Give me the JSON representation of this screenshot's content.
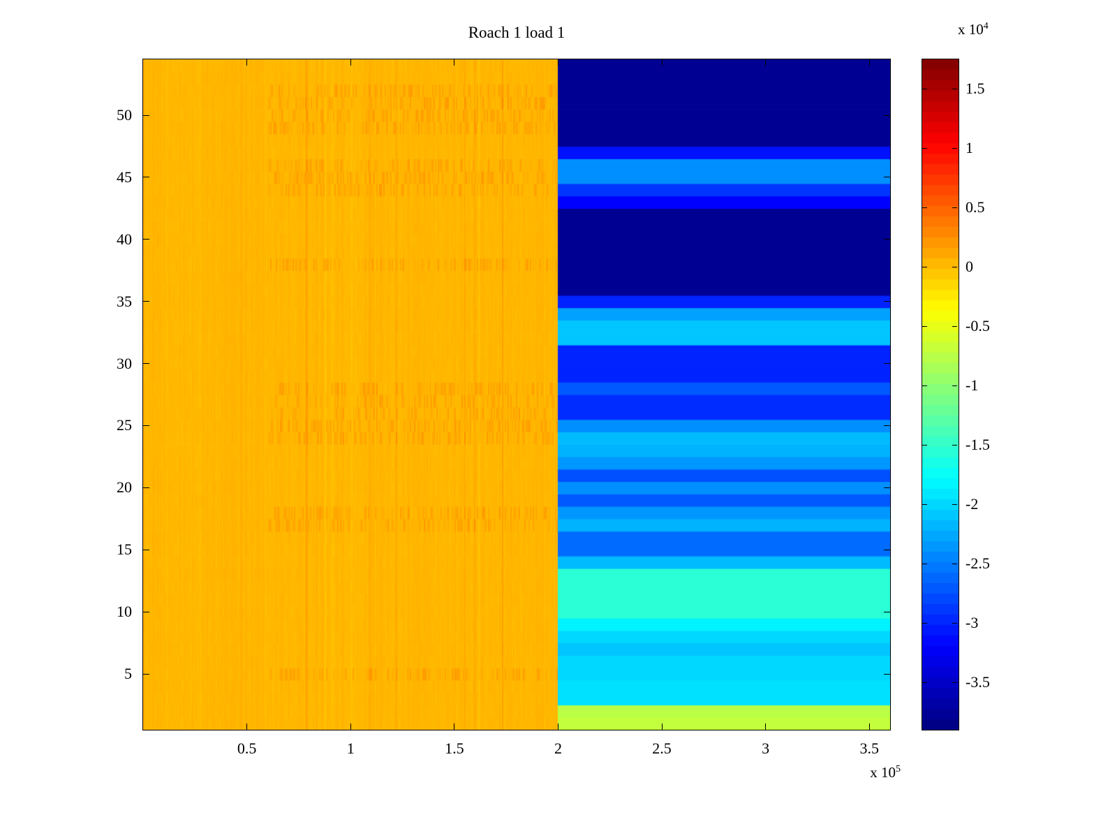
{
  "chart_data": {
    "type": "heatmap",
    "title": "Roach 1 load 1",
    "xlim": [
      0,
      360000
    ],
    "x_ticks": [
      50000,
      100000,
      150000,
      200000,
      250000,
      300000,
      350000
    ],
    "x_tick_labels": [
      "0.5",
      "1",
      "1.5",
      "2",
      "2.5",
      "3",
      "3.5"
    ],
    "x_scale": {
      "prefix": "x 10",
      "exponent": "5"
    },
    "ylim": [
      0.5,
      54.5
    ],
    "y_ticks": [
      5,
      10,
      15,
      20,
      25,
      30,
      35,
      40,
      45,
      50
    ],
    "y_tick_labels": [
      "5",
      "10",
      "15",
      "20",
      "25",
      "30",
      "35",
      "40",
      "45",
      "50"
    ],
    "colormap": "jet",
    "grid": false,
    "colorbar": {
      "position": "right",
      "scale": {
        "prefix": "x 10",
        "exponent": "4"
      },
      "clim": [
        -39000,
        17500
      ],
      "segments": 64,
      "tick_values": [
        15000,
        10000,
        5000,
        0,
        -5000,
        -10000,
        -15000,
        -20000,
        -25000,
        -30000,
        -35000
      ],
      "tick_labels": [
        "1.5",
        "1",
        "0.5",
        "0",
        "-0.5",
        "-1",
        "-1.5",
        "-2",
        "-2.5",
        "-3",
        "-3.5"
      ]
    },
    "regions": {
      "split_x": 200000,
      "left_half": {
        "base_value": 300,
        "column_noise_amp": 450,
        "cell_noise_amp": 320,
        "speckle_amp": 1500,
        "speckle_rows": [
          5,
          17,
          18,
          24,
          25,
          26,
          27,
          28,
          38,
          44,
          45,
          46,
          49,
          50,
          51,
          52
        ],
        "speckle_x_start": 60000
      },
      "right_row_values": [
        -7000,
        -7500,
        -19500,
        -19500,
        -20000,
        -20000,
        -21000,
        -20000,
        -18500,
        -15500,
        -15500,
        -15500,
        -15500,
        -21500,
        -26000,
        -26000,
        -22000,
        -23500,
        -27000,
        -24000,
        -27500,
        -23500,
        -22000,
        -21500,
        -24000,
        -29500,
        -29500,
        -27000,
        -30000,
        -30000,
        -30000,
        -21000,
        -21000,
        -23000,
        -30000,
        -38000,
        -38000,
        -38000,
        -38000,
        -38000,
        -38000,
        -38000,
        -32000,
        -29000,
        -24000,
        -24000,
        -31000,
        -38000,
        -38000,
        -38000,
        -38000,
        -38000,
        -38000,
        -38000
      ]
    }
  }
}
